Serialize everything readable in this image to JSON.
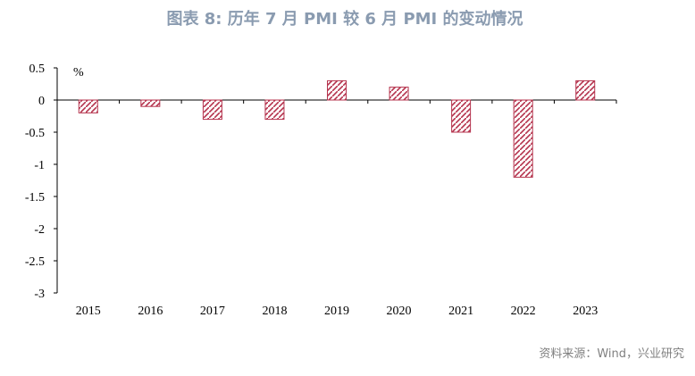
{
  "chart_data": {
    "type": "bar",
    "title": "图表 8: 历年 7 月 PMI 较 6 月 PMI 的变动情况",
    "unit_label": "%",
    "categories": [
      "2015",
      "2016",
      "2017",
      "2018",
      "2019",
      "2020",
      "2021",
      "2022",
      "2023"
    ],
    "values": [
      -0.2,
      -0.1,
      -0.3,
      -0.3,
      0.3,
      0.2,
      -0.5,
      -1.2,
      0.3
    ],
    "ylim": [
      -3,
      0.5
    ],
    "yticks": [
      "0.5",
      "0",
      "-0.5",
      "-1",
      "-1.5",
      "-2",
      "-2.5",
      "-3"
    ],
    "ytick_values": [
      0.5,
      0,
      -0.5,
      -1,
      -1.5,
      -2,
      -2.5,
      -3
    ],
    "bar_style": "diagonal-hatch",
    "bar_color": "#b5334d",
    "grid": false,
    "source": "资料来源：Wind，兴业研究"
  }
}
